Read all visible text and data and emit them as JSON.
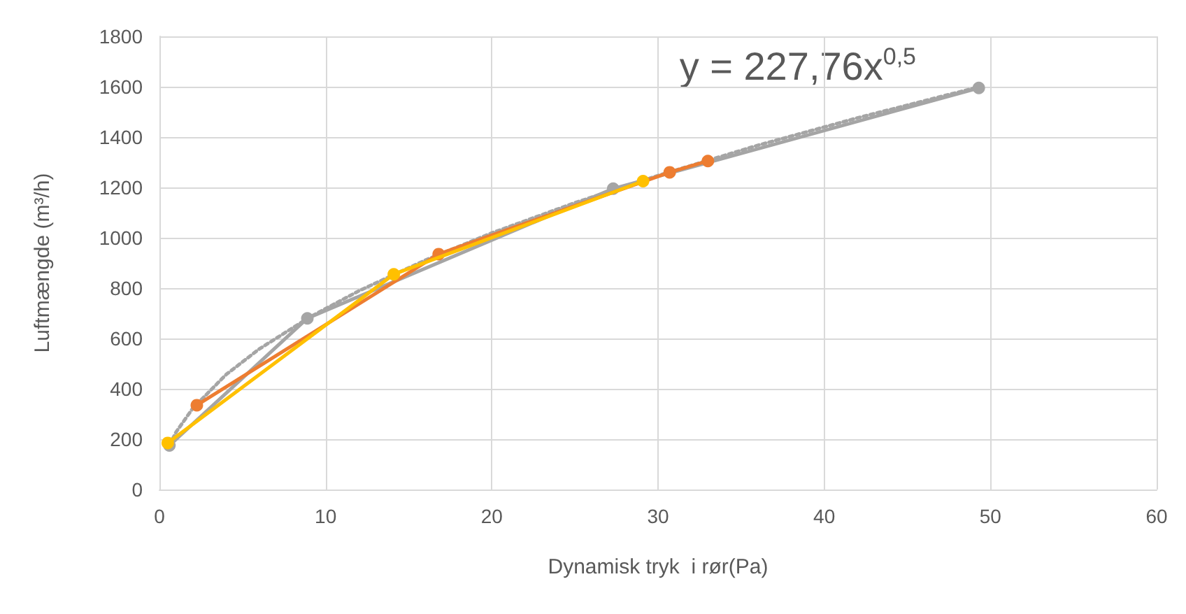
{
  "chart_data": {
    "type": "line",
    "xlabel": "Dynamisk tryk  i rør(Pa)",
    "ylabel": "Luftmængde (m³/h)",
    "xlim": [
      0,
      60
    ],
    "xticks": [
      0,
      10,
      20,
      30,
      40,
      50,
      60
    ],
    "ylim": [
      0,
      1800
    ],
    "yticks": [
      0,
      200,
      400,
      600,
      800,
      1000,
      1200,
      1400,
      1600,
      1800
    ],
    "grid": true,
    "marker": "circle",
    "line_style": "solid",
    "series": [
      {
        "color": "#ffc000",
        "x": [
          0.5,
          14.1,
          29.1
        ],
        "values": [
          185,
          855,
          1225
        ]
      },
      {
        "color": "#ed7d31",
        "x": [
          2.25,
          16.8,
          30.7,
          33
        ],
        "values": [
          335,
          935,
          1260,
          1305
        ]
      },
      {
        "color": "#a5a5a5",
        "x": [
          0.6,
          8.9,
          27.3,
          49.3
        ],
        "values": [
          175,
          680,
          1195,
          1595
        ]
      },
      {
        "type": "line",
        "color": "#a5a5a5",
        "marker": "none",
        "line_style": "dotted",
        "x": [
          0.6,
          1,
          2,
          4,
          6,
          9,
          12,
          16,
          20,
          25,
          30,
          36,
          42,
          49.3
        ],
        "values": [
          176,
          228,
          322,
          456,
          558,
          683,
          789,
          911,
          1019,
          1139,
          1247,
          1367,
          1476,
          1599
        ]
      }
    ],
    "annotations": [
      "y = 227,76x$^{0,5}$"
    ]
  }
}
